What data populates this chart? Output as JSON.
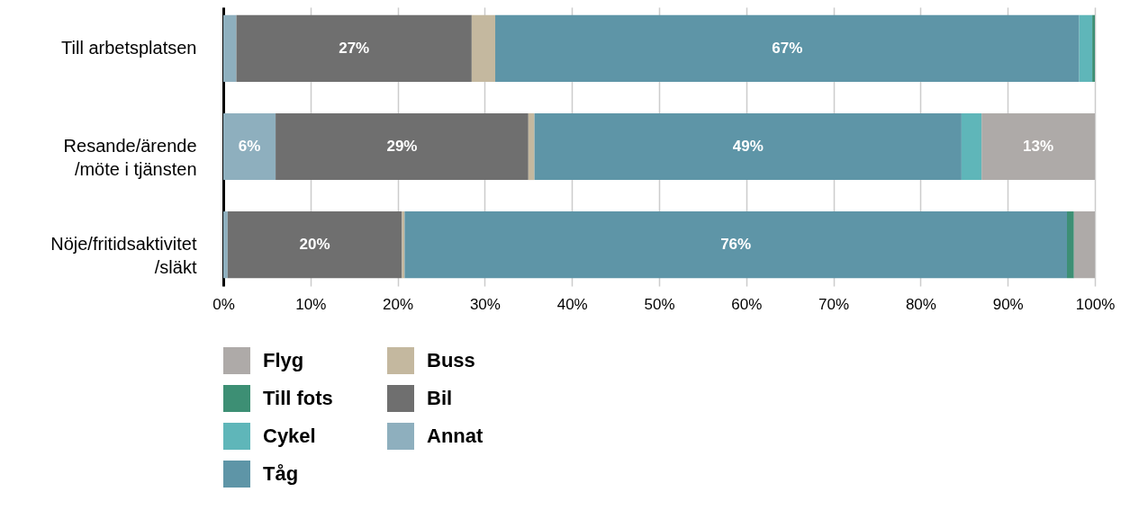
{
  "chart_data": {
    "type": "bar",
    "orientation": "horizontal",
    "stacked": true,
    "categories": [
      "Till arbetsplatsen",
      "Resande/ärende\n/möte i tjänsten",
      "Nöje/fritidsaktivitet\n/släkt"
    ],
    "series": [
      {
        "name": "Annat",
        "color": "#8eafbe",
        "values": [
          1.5,
          6,
          0.5
        ],
        "value_labels": [
          null,
          "6%",
          null
        ]
      },
      {
        "name": "Bil",
        "color": "#6f6f6f",
        "values": [
          27,
          29,
          20
        ],
        "value_labels": [
          "27%",
          "29%",
          "20%"
        ]
      },
      {
        "name": "Buss",
        "color": "#c4b89f",
        "values": [
          2.7,
          0.7,
          0.3
        ]
      },
      {
        "name": "Tåg",
        "color": "#5e95a7",
        "values": [
          67,
          49,
          76
        ],
        "value_labels": [
          "67%",
          "49%",
          "76%"
        ]
      },
      {
        "name": "Cykel",
        "color": "#5fb6b9",
        "values": [
          1.5,
          2.3,
          0
        ]
      },
      {
        "name": "Till fots",
        "color": "#3d8f74",
        "values": [
          0.3,
          0,
          0.8
        ]
      },
      {
        "name": "Flyg",
        "color": "#aeaaa8",
        "values": [
          0,
          13,
          2.4
        ],
        "value_labels": [
          null,
          "13%",
          null
        ]
      }
    ],
    "xlim": [
      0,
      100
    ],
    "xticks": [
      {
        "value": 0,
        "label": "0%"
      },
      {
        "value": 10,
        "label": "10%"
      },
      {
        "value": 20,
        "label": "20%"
      },
      {
        "value": 30,
        "label": "30%"
      },
      {
        "value": 40,
        "label": "40%"
      },
      {
        "value": 50,
        "label": "50%"
      },
      {
        "value": 60,
        "label": "60%"
      },
      {
        "value": 70,
        "label": "70%"
      },
      {
        "value": 80,
        "label": "80%"
      },
      {
        "value": 90,
        "label": "90%"
      },
      {
        "value": 100,
        "label": "100%"
      }
    ],
    "grid": "x",
    "legend": "bottom left"
  }
}
